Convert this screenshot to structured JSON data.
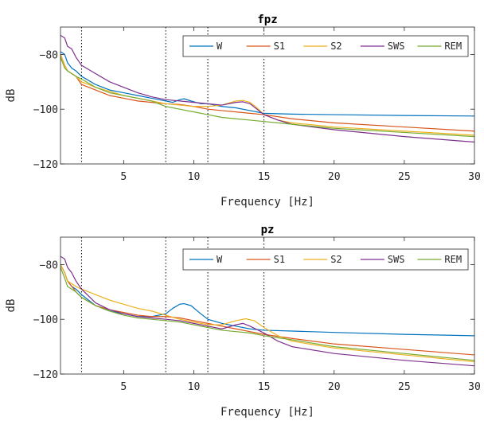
{
  "figure": {
    "background": "#ffffff",
    "axis_color": "#262626",
    "vline_color": "#000000"
  },
  "chart_data": [
    {
      "type": "line",
      "title": "fpz",
      "xlabel": "Frequency [Hz]",
      "ylabel": "dB",
      "xlim": [
        0.5,
        30
      ],
      "ylim": [
        -120,
        -70
      ],
      "xticks": [
        5,
        10,
        15,
        20,
        25,
        30
      ],
      "yticks": [
        -80,
        -100,
        -120
      ],
      "xtick_labels": [
        "5",
        "10",
        "15",
        "20",
        "25",
        "30"
      ],
      "ytick_labels": [
        "−80",
        "−100",
        "−120"
      ],
      "vlines": [
        2,
        8,
        11,
        15
      ],
      "legend_position": "top-right",
      "series": [
        {
          "name": "W",
          "color": "#0072BD",
          "points": [
            [
              0.5,
              -79
            ],
            [
              0.8,
              -80
            ],
            [
              1,
              -83
            ],
            [
              1.3,
              -85
            ],
            [
              1.6,
              -86
            ],
            [
              2,
              -88
            ],
            [
              3,
              -91
            ],
            [
              4,
              -93
            ],
            [
              5,
              -94
            ],
            [
              6,
              -95
            ],
            [
              7,
              -96
            ],
            [
              8,
              -97
            ],
            [
              8.5,
              -97.5
            ],
            [
              9,
              -96.5
            ],
            [
              9.3,
              -96.2
            ],
            [
              9.8,
              -97
            ],
            [
              10.5,
              -98
            ],
            [
              11,
              -98
            ],
            [
              12,
              -99
            ],
            [
              13,
              -99.5
            ],
            [
              14,
              -100.5
            ],
            [
              15,
              -101.5
            ],
            [
              17,
              -101.8
            ],
            [
              20,
              -102
            ],
            [
              25,
              -102.3
            ],
            [
              30,
              -102.5
            ]
          ]
        },
        {
          "name": "S1",
          "color": "#D95319",
          "points": [
            [
              0.5,
              -80
            ],
            [
              0.8,
              -84
            ],
            [
              1,
              -86
            ],
            [
              1.3,
              -87
            ],
            [
              1.6,
              -88
            ],
            [
              2,
              -91
            ],
            [
              3,
              -93
            ],
            [
              4,
              -95
            ],
            [
              5,
              -96
            ],
            [
              6,
              -97
            ],
            [
              7,
              -97.5
            ],
            [
              8,
              -98
            ],
            [
              9,
              -98.3
            ],
            [
              10,
              -99
            ],
            [
              11,
              -100
            ],
            [
              12,
              -100.5
            ],
            [
              13,
              -101
            ],
            [
              14,
              -101.5
            ],
            [
              15,
              -102
            ],
            [
              17,
              -103.5
            ],
            [
              20,
              -105
            ],
            [
              25,
              -106.5
            ],
            [
              30,
              -108
            ]
          ]
        },
        {
          "name": "S2",
          "color": "#EDB120",
          "points": [
            [
              0.5,
              -80
            ],
            [
              0.8,
              -84
            ],
            [
              1,
              -86
            ],
            [
              1.3,
              -87
            ],
            [
              1.6,
              -88
            ],
            [
              2,
              -90
            ],
            [
              3,
              -92
            ],
            [
              4,
              -93.5
            ],
            [
              5,
              -95
            ],
            [
              6,
              -96
            ],
            [
              7,
              -97
            ],
            [
              8,
              -98
            ],
            [
              9,
              -98.5
            ],
            [
              10,
              -99
            ],
            [
              11,
              -99
            ],
            [
              12,
              -98.5
            ],
            [
              13,
              -97
            ],
            [
              13.5,
              -96.8
            ],
            [
              14,
              -97.5
            ],
            [
              14.5,
              -99.5
            ],
            [
              15,
              -102
            ],
            [
              16,
              -104
            ],
            [
              17,
              -105
            ],
            [
              20,
              -106.5
            ],
            [
              25,
              -108
            ],
            [
              30,
              -109.5
            ]
          ]
        },
        {
          "name": "SWS",
          "color": "#7E2F8E",
          "points": [
            [
              0.5,
              -73
            ],
            [
              0.8,
              -74
            ],
            [
              1,
              -77
            ],
            [
              1.3,
              -78
            ],
            [
              1.6,
              -81
            ],
            [
              2,
              -84
            ],
            [
              3,
              -87
            ],
            [
              4,
              -90
            ],
            [
              5,
              -92
            ],
            [
              6,
              -94
            ],
            [
              7,
              -95.5
            ],
            [
              8,
              -96.5
            ],
            [
              9,
              -97
            ],
            [
              10,
              -97.5
            ],
            [
              11,
              -98
            ],
            [
              12,
              -98.5
            ],
            [
              13,
              -97.5
            ],
            [
              13.5,
              -97.3
            ],
            [
              14,
              -98
            ],
            [
              14.5,
              -100
            ],
            [
              15,
              -102
            ],
            [
              16,
              -104
            ],
            [
              17,
              -105.5
            ],
            [
              20,
              -107.5
            ],
            [
              25,
              -110
            ],
            [
              30,
              -112
            ]
          ]
        },
        {
          "name": "REM",
          "color": "#77AC30",
          "points": [
            [
              0.5,
              -81
            ],
            [
              0.8,
              -85
            ],
            [
              1,
              -86
            ],
            [
              1.3,
              -87
            ],
            [
              1.6,
              -88
            ],
            [
              2,
              -89
            ],
            [
              3,
              -92
            ],
            [
              4,
              -94
            ],
            [
              5,
              -95
            ],
            [
              6,
              -96
            ],
            [
              7,
              -97
            ],
            [
              8,
              -99
            ],
            [
              9,
              -100
            ],
            [
              10,
              -101
            ],
            [
              11,
              -102
            ],
            [
              12,
              -103
            ],
            [
              13,
              -103.5
            ],
            [
              14,
              -104
            ],
            [
              15,
              -104.5
            ],
            [
              16,
              -105
            ],
            [
              17,
              -105.5
            ],
            [
              20,
              -107
            ],
            [
              25,
              -108.5
            ],
            [
              30,
              -110
            ]
          ]
        }
      ]
    },
    {
      "type": "line",
      "title": "pz",
      "xlabel": "Frequency [Hz]",
      "ylabel": "dB",
      "xlim": [
        0.5,
        30
      ],
      "ylim": [
        -120,
        -70
      ],
      "xticks": [
        5,
        10,
        15,
        20,
        25,
        30
      ],
      "yticks": [
        -80,
        -100,
        -120
      ],
      "xtick_labels": [
        "5",
        "10",
        "15",
        "20",
        "25",
        "30"
      ],
      "ytick_labels": [
        "−80",
        "−100",
        "−120"
      ],
      "vlines": [
        2,
        8,
        11,
        15
      ],
      "legend_position": "top-right",
      "series": [
        {
          "name": "W",
          "color": "#0072BD",
          "points": [
            [
              0.5,
              -80
            ],
            [
              0.8,
              -83
            ],
            [
              1,
              -86
            ],
            [
              1.3,
              -88
            ],
            [
              1.6,
              -89
            ],
            [
              2,
              -91
            ],
            [
              3,
              -95
            ],
            [
              4,
              -97
            ],
            [
              5,
              -98
            ],
            [
              6,
              -99
            ],
            [
              7,
              -99
            ],
            [
              8,
              -98
            ],
            [
              8.5,
              -96
            ],
            [
              9,
              -94.5
            ],
            [
              9.3,
              -94.3
            ],
            [
              9.8,
              -95
            ],
            [
              10.5,
              -98
            ],
            [
              11,
              -100
            ],
            [
              12,
              -101.5
            ],
            [
              13,
              -102.5
            ],
            [
              14,
              -103.5
            ],
            [
              15,
              -104
            ],
            [
              17,
              -104.3
            ],
            [
              20,
              -104.8
            ],
            [
              25,
              -105.5
            ],
            [
              30,
              -106
            ]
          ]
        },
        {
          "name": "S1",
          "color": "#D95319",
          "points": [
            [
              0.5,
              -80
            ],
            [
              0.8,
              -83
            ],
            [
              1,
              -86
            ],
            [
              1.3,
              -88
            ],
            [
              1.6,
              -90
            ],
            [
              2,
              -92
            ],
            [
              3,
              -95
            ],
            [
              4,
              -96.5
            ],
            [
              5,
              -97.5
            ],
            [
              6,
              -98.5
            ],
            [
              7,
              -99
            ],
            [
              8,
              -99
            ],
            [
              9,
              -99.5
            ],
            [
              10,
              -100.5
            ],
            [
              11,
              -101.5
            ],
            [
              12,
              -102.5
            ],
            [
              13,
              -103.5
            ],
            [
              14,
              -104.5
            ],
            [
              15,
              -105.5
            ],
            [
              17,
              -107
            ],
            [
              20,
              -109
            ],
            [
              25,
              -111
            ],
            [
              30,
              -113
            ]
          ]
        },
        {
          "name": "S2",
          "color": "#EDB120",
          "points": [
            [
              0.5,
              -80
            ],
            [
              0.8,
              -83
            ],
            [
              1,
              -86
            ],
            [
              1.3,
              -87
            ],
            [
              1.6,
              -88
            ],
            [
              2,
              -89
            ],
            [
              3,
              -91
            ],
            [
              4,
              -93
            ],
            [
              5,
              -94.5
            ],
            [
              6,
              -96
            ],
            [
              7,
              -97
            ],
            [
              8,
              -98.5
            ],
            [
              9,
              -100
            ],
            [
              10,
              -101
            ],
            [
              11,
              -102
            ],
            [
              12,
              -102
            ],
            [
              13,
              -100.5
            ],
            [
              13.7,
              -99.8
            ],
            [
              14.3,
              -100.5
            ],
            [
              15,
              -103
            ],
            [
              16,
              -106
            ],
            [
              17,
              -108
            ],
            [
              20,
              -110.5
            ],
            [
              25,
              -113
            ],
            [
              30,
              -115.5
            ]
          ]
        },
        {
          "name": "SWS",
          "color": "#7E2F8E",
          "points": [
            [
              0.5,
              -77
            ],
            [
              0.8,
              -78
            ],
            [
              1,
              -81
            ],
            [
              1.3,
              -83
            ],
            [
              1.6,
              -86
            ],
            [
              2,
              -89
            ],
            [
              3,
              -94
            ],
            [
              4,
              -96.5
            ],
            [
              5,
              -98
            ],
            [
              6,
              -99
            ],
            [
              7,
              -99.5
            ],
            [
              8,
              -100
            ],
            [
              9,
              -100.5
            ],
            [
              10,
              -101.5
            ],
            [
              11,
              -102.5
            ],
            [
              12,
              -103.5
            ],
            [
              13,
              -102
            ],
            [
              13.5,
              -101.5
            ],
            [
              14,
              -102.5
            ],
            [
              15,
              -105
            ],
            [
              16,
              -108
            ],
            [
              17,
              -110
            ],
            [
              20,
              -112.5
            ],
            [
              25,
              -115
            ],
            [
              30,
              -117
            ]
          ]
        },
        {
          "name": "REM",
          "color": "#77AC30",
          "points": [
            [
              0.5,
              -81
            ],
            [
              0.8,
              -85
            ],
            [
              1,
              -88
            ],
            [
              1.3,
              -89
            ],
            [
              1.6,
              -90
            ],
            [
              2,
              -92
            ],
            [
              3,
              -95
            ],
            [
              4,
              -97
            ],
            [
              5,
              -98.5
            ],
            [
              6,
              -99.5
            ],
            [
              7,
              -100
            ],
            [
              8,
              -100.5
            ],
            [
              9,
              -101
            ],
            [
              10,
              -102
            ],
            [
              11,
              -103
            ],
            [
              12,
              -104
            ],
            [
              13,
              -104.5
            ],
            [
              14,
              -105
            ],
            [
              15,
              -106
            ],
            [
              17,
              -107.5
            ],
            [
              20,
              -110
            ],
            [
              25,
              -112.5
            ],
            [
              30,
              -115
            ]
          ]
        }
      ]
    }
  ]
}
